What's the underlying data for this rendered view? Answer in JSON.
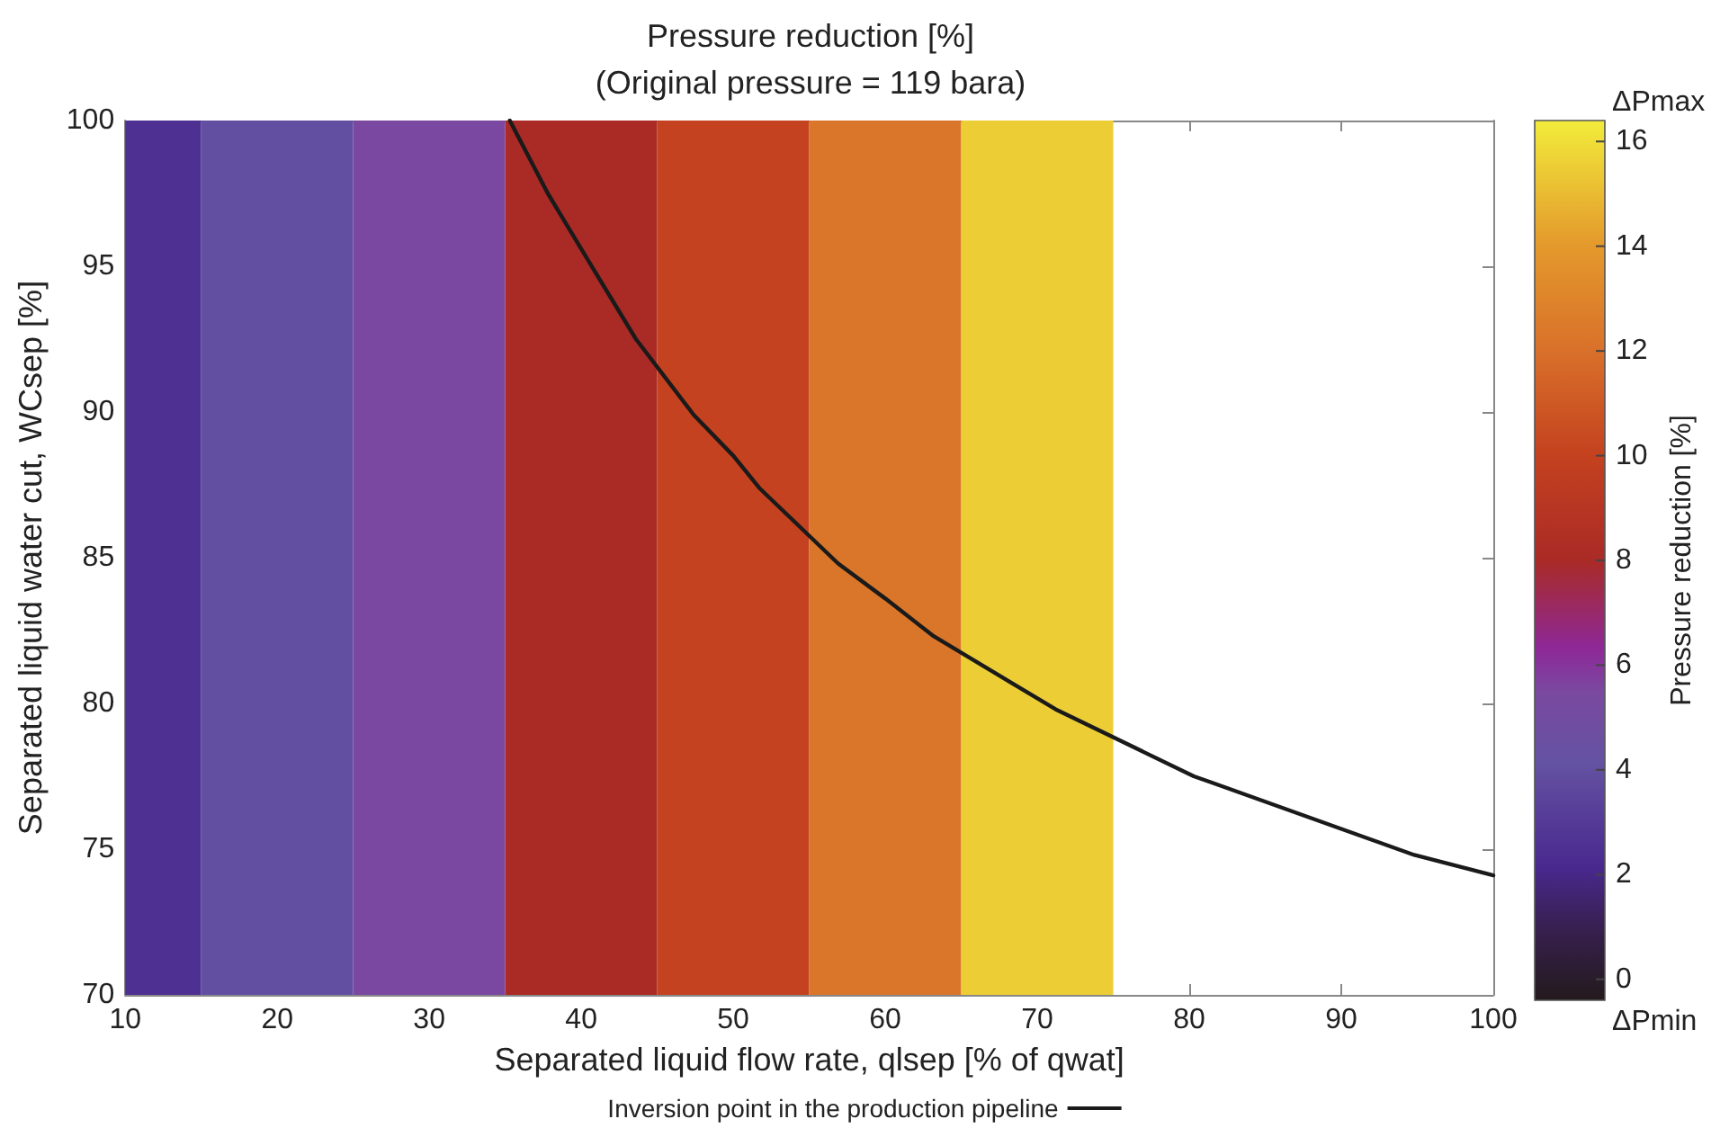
{
  "chart_data": {
    "type": "heatmap",
    "title": "Pressure reduction [%]",
    "subtitle": "(Original pressure = 119 bara)",
    "xlabel": "Separated liquid flow rate, qlsep [% of qwat]",
    "ylabel": "Separated liquid water cut, WCsep [%]",
    "clabel": "Pressure reduction [%]",
    "x": [
      10,
      20,
      30,
      40,
      50,
      60,
      70,
      80,
      90,
      100
    ],
    "xlim": [
      10,
      100
    ],
    "xticks": [
      10,
      20,
      30,
      40,
      50,
      60,
      70,
      80,
      90,
      100
    ],
    "ylim": [
      70,
      100
    ],
    "yticks": [
      70,
      75,
      80,
      85,
      90,
      95,
      100
    ],
    "cells": [
      [
        2.5,
        4,
        5.5,
        8,
        10,
        12.3,
        15.5,
        null,
        null,
        null
      ]
    ],
    "clim": [
      -0.4,
      16.4
    ],
    "cticks": [
      0,
      2,
      4,
      6,
      8,
      10,
      12,
      14,
      16
    ],
    "annotations": [
      "ΔPmax",
      "ΔPmin"
    ],
    "series": [
      {
        "type": "line",
        "name": "Inversion point in the production pipeline",
        "color": "#1a1a1a",
        "x": [
          35.3,
          37.8,
          40.8,
          43.6,
          47.4,
          50.0,
          51.7,
          56.9,
          60.0,
          63.2,
          71.2,
          80.3,
          81.4,
          94.8,
          100
        ],
        "values": [
          100,
          97.5,
          94.9,
          92.5,
          89.9,
          88.5,
          87.4,
          84.8,
          83.6,
          82.3,
          79.8,
          77.5,
          77.3,
          74.8,
          74.1
        ]
      }
    ],
    "legend": "bottom",
    "grid": false,
    "marker": "none",
    "line_style": "solid"
  }
}
